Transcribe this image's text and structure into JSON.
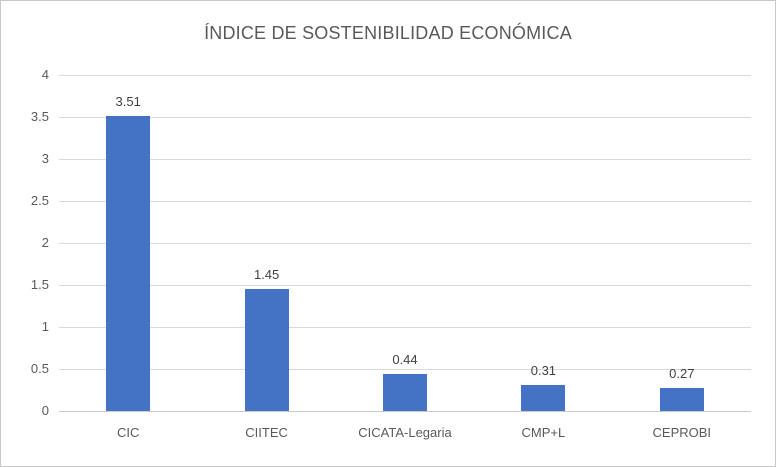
{
  "chart_data": {
    "type": "bar",
    "title": "ÍNDICE DE SOSTENIBILIDAD ECONÓMICA",
    "categories": [
      "CIC",
      "CIITEC",
      "CICATA-Legaria",
      "CMP+L",
      "CEPROBI"
    ],
    "values": [
      3.51,
      1.45,
      0.44,
      0.31,
      0.27
    ],
    "value_labels": [
      "3.51",
      "1.45",
      "0.44",
      "0.31",
      "0.27"
    ],
    "y_ticks": [
      "4",
      "3.5",
      "3",
      "2.5",
      "2",
      "1.5",
      "1",
      "0.5",
      "0"
    ],
    "y_tick_values": [
      4,
      3.5,
      3,
      2.5,
      2,
      1.5,
      1,
      0.5,
      0
    ],
    "ylim": [
      0,
      4
    ],
    "xlabel": "",
    "ylabel": "",
    "grid": true,
    "legend": false,
    "colors": {
      "bar": "#4472C4",
      "title_text": "#595959",
      "axis_text": "#595959",
      "data_label_text": "#404040",
      "gridline": "#D9D9D9",
      "chart_border": "#C8C8C8",
      "background": "#FFFFFF"
    }
  }
}
